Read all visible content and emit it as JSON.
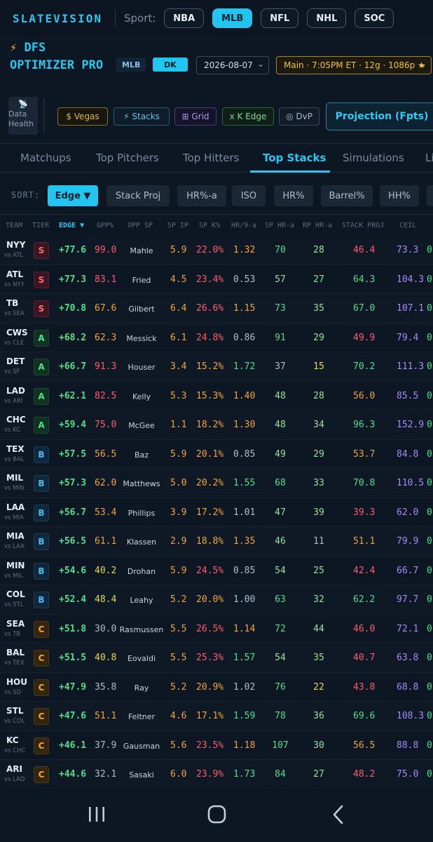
{
  "brand": "SLATEVISION",
  "sport_label": "Sport:",
  "sports": [
    "NBA",
    "MLB",
    "NFL",
    "NHL",
    "SOC"
  ],
  "active_sport": "MLB",
  "header": {
    "bolt": "⚡",
    "title": "DFS OPTIMIZER PRO",
    "league_tag": "MLB",
    "site_tag": "DK",
    "date": "2026-08-07",
    "slate": "Main · 7:05PM ET · 12g · 1086p ★"
  },
  "tools": {
    "data_health": "Data Health",
    "vegas": "$ Vegas",
    "stacks": "⚡ Stacks",
    "grid": "⊞ Grid",
    "k_edge": "x K Edge",
    "dvp": "◎ DvP",
    "projection": "Projection (Fpts)"
  },
  "tabs": [
    "Matchups",
    "Top Pitchers",
    "Top Hitters",
    "Top Stacks",
    "Simulations",
    "Li"
  ],
  "active_tab": "Top Stacks",
  "sort": {
    "label": "SORT:",
    "options": [
      "Edge ▼",
      "Stack Proj",
      "HR%-a",
      "ISO",
      "HR%",
      "Barrel%",
      "HH%",
      ""
    ]
  },
  "columns": [
    "TEAM",
    "TIER",
    "EDGE ▼",
    "GPP%",
    "OPP SP",
    "SP IP",
    "SP K%",
    "HR/9-a",
    "SP HR-a",
    "RP HR-a",
    "STACK PROJ",
    "CEIL"
  ],
  "rows": [
    {
      "team": "NYY",
      "opp": "vs ATL",
      "tier": "S",
      "edge": "+77.6",
      "gpp": "99.0",
      "sp": "Mahle",
      "ip": "5.9",
      "k": "22.0%",
      "hr9": "1.32",
      "sphr": "70",
      "rphr": "28",
      "proj": "46.4",
      "ceil": "73.3",
      "last": "0"
    },
    {
      "team": "ATL",
      "opp": "vs NYY",
      "tier": "S",
      "edge": "+77.3",
      "gpp": "83.1",
      "sp": "Fried",
      "ip": "4.5",
      "k": "23.4%",
      "hr9": "0.53",
      "sphr": "57",
      "rphr": "27",
      "proj": "64.3",
      "ceil": "104.3",
      "last": "0"
    },
    {
      "team": "TB",
      "opp": "vs SEA",
      "tier": "S",
      "edge": "+70.8",
      "gpp": "67.6",
      "sp": "Gilbert",
      "ip": "6.4",
      "k": "26.6%",
      "hr9": "1.15",
      "sphr": "73",
      "rphr": "35",
      "proj": "67.0",
      "ceil": "107.1",
      "last": "0"
    },
    {
      "team": "CWS",
      "opp": "vs CLE",
      "tier": "A",
      "edge": "+68.2",
      "gpp": "62.3",
      "sp": "Messick",
      "ip": "6.1",
      "k": "24.8%",
      "hr9": "0.86",
      "sphr": "91",
      "rphr": "29",
      "proj": "49.9",
      "ceil": "79.4",
      "last": "0"
    },
    {
      "team": "DET",
      "opp": "vs SF",
      "tier": "A",
      "edge": "+66.7",
      "gpp": "91.3",
      "sp": "Houser",
      "ip": "3.4",
      "k": "15.2%",
      "hr9": "1.72",
      "sphr": "37",
      "rphr": "15",
      "proj": "70.2",
      "ceil": "111.3",
      "last": "0"
    },
    {
      "team": "LAD",
      "opp": "vs ARI",
      "tier": "A",
      "edge": "+62.1",
      "gpp": "82.5",
      "sp": "Kelly",
      "ip": "5.3",
      "k": "15.3%",
      "hr9": "1.40",
      "sphr": "48",
      "rphr": "28",
      "proj": "56.0",
      "ceil": "85.5",
      "last": "0"
    },
    {
      "team": "CHC",
      "opp": "vs KC",
      "tier": "A",
      "edge": "+59.4",
      "gpp": "75.0",
      "sp": "McGee",
      "ip": "1.1",
      "k": "18.2%",
      "hr9": "1.30",
      "sphr": "48",
      "rphr": "34",
      "proj": "96.3",
      "ceil": "152.9",
      "last": "0"
    },
    {
      "team": "TEX",
      "opp": "vs BAL",
      "tier": "B",
      "edge": "+57.5",
      "gpp": "56.5",
      "sp": "Baz",
      "ip": "5.9",
      "k": "20.1%",
      "hr9": "0.85",
      "sphr": "49",
      "rphr": "29",
      "proj": "53.7",
      "ceil": "84.8",
      "last": "0"
    },
    {
      "team": "MIL",
      "opp": "vs MIN",
      "tier": "B",
      "edge": "+57.3",
      "gpp": "62.0",
      "sp": "Matthews",
      "ip": "5.0",
      "k": "20.2%",
      "hr9": "1.55",
      "sphr": "68",
      "rphr": "33",
      "proj": "70.8",
      "ceil": "110.5",
      "last": "0"
    },
    {
      "team": "LAA",
      "opp": "vs MIA",
      "tier": "B",
      "edge": "+56.7",
      "gpp": "53.4",
      "sp": "Phillips",
      "ip": "3.9",
      "k": "17.2%",
      "hr9": "1.01",
      "sphr": "47",
      "rphr": "39",
      "proj": "39.3",
      "ceil": "62.0",
      "last": "0"
    },
    {
      "team": "MIA",
      "opp": "vs LAA",
      "tier": "B",
      "edge": "+56.5",
      "gpp": "61.1",
      "sp": "Klassen",
      "ip": "2.9",
      "k": "18.8%",
      "hr9": "1.35",
      "sphr": "46",
      "rphr": "11",
      "proj": "51.1",
      "ceil": "79.9",
      "last": "0"
    },
    {
      "team": "MIN",
      "opp": "vs MIL",
      "tier": "B",
      "edge": "+54.6",
      "gpp": "40.2",
      "sp": "Drohan",
      "ip": "5.9",
      "k": "24.5%",
      "hr9": "0.85",
      "sphr": "54",
      "rphr": "25",
      "proj": "42.4",
      "ceil": "66.7",
      "last": "0"
    },
    {
      "team": "COL",
      "opp": "vs STL",
      "tier": "B",
      "edge": "+52.4",
      "gpp": "48.4",
      "sp": "Leahy",
      "ip": "5.2",
      "k": "20.0%",
      "hr9": "1.00",
      "sphr": "63",
      "rphr": "32",
      "proj": "62.2",
      "ceil": "97.7",
      "last": "0"
    },
    {
      "team": "SEA",
      "opp": "vs TB",
      "tier": "C",
      "edge": "+51.8",
      "gpp": "30.0",
      "sp": "Rasmussen",
      "ip": "5.5",
      "k": "26.5%",
      "hr9": "1.14",
      "sphr": "72",
      "rphr": "44",
      "proj": "46.0",
      "ceil": "72.1",
      "last": "0"
    },
    {
      "team": "BAL",
      "opp": "vs TEX",
      "tier": "C",
      "edge": "+51.5",
      "gpp": "40.8",
      "sp": "Eovaldi",
      "ip": "5.5",
      "k": "25.3%",
      "hr9": "1.57",
      "sphr": "54",
      "rphr": "35",
      "proj": "40.7",
      "ceil": "63.8",
      "last": "0"
    },
    {
      "team": "HOU",
      "opp": "vs SD",
      "tier": "C",
      "edge": "+47.9",
      "gpp": "35.8",
      "sp": "Ray",
      "ip": "5.2",
      "k": "20.9%",
      "hr9": "1.02",
      "sphr": "76",
      "rphr": "22",
      "proj": "43.8",
      "ceil": "68.8",
      "last": "0"
    },
    {
      "team": "STL",
      "opp": "vs COL",
      "tier": "C",
      "edge": "+47.6",
      "gpp": "51.1",
      "sp": "Feltner",
      "ip": "4.6",
      "k": "17.1%",
      "hr9": "1.59",
      "sphr": "78",
      "rphr": "36",
      "proj": "69.6",
      "ceil": "108.3",
      "last": "0"
    },
    {
      "team": "KC",
      "opp": "vs CHC",
      "tier": "C",
      "edge": "+46.1",
      "gpp": "37.9",
      "sp": "Gausman",
      "ip": "5.6",
      "k": "23.5%",
      "hr9": "1.18",
      "sphr": "107",
      "rphr": "30",
      "proj": "56.5",
      "ceil": "88.8",
      "last": "0"
    },
    {
      "team": "ARI",
      "opp": "vs LAD",
      "tier": "C",
      "edge": "+44.6",
      "gpp": "32.1",
      "sp": "Sasaki",
      "ip": "6.0",
      "k": "23.9%",
      "hr9": "1.73",
      "sphr": "84",
      "rphr": "27",
      "proj": "48.2",
      "ceil": "75.0",
      "last": "0"
    }
  ],
  "colors": {
    "accent": "#27c9f2",
    "green": "#4fe08a",
    "red": "#ff5c6a",
    "orange": "#f4a43a",
    "purple": "#a78bfa",
    "gold": "#f2c23a"
  },
  "android_nav": {
    "recents": "recents-icon",
    "home": "home-icon",
    "back": "back-icon"
  }
}
